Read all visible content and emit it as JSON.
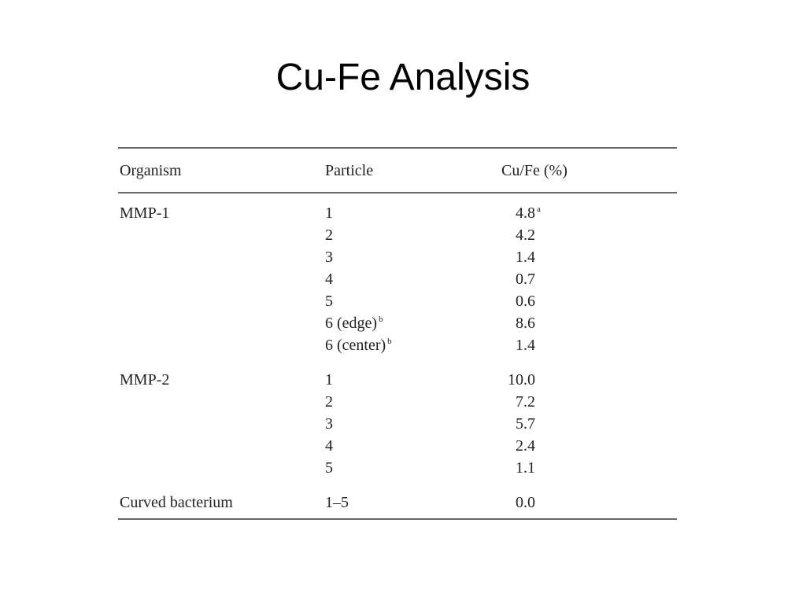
{
  "header": {
    "title": "Cu-Fe Analysis"
  },
  "table": {
    "columns": [
      "Organism",
      "Particle",
      "Cu/Fe (%)"
    ],
    "groups": [
      {
        "organism": "MMP-1",
        "entries": [
          {
            "particle": "1",
            "value": "4.8",
            "note": "a"
          },
          {
            "particle": "2",
            "value": "4.2"
          },
          {
            "particle": "3",
            "value": "1.4"
          },
          {
            "particle": "4",
            "value": "0.7"
          },
          {
            "particle": "5",
            "value": "0.6"
          },
          {
            "particle": "6 (edge)",
            "particle_note": "b",
            "value": "8.6"
          },
          {
            "particle": "6 (center)",
            "particle_note": "b",
            "value": "1.4"
          }
        ]
      },
      {
        "organism": "MMP-2",
        "entries": [
          {
            "particle": "1",
            "value": "10.0"
          },
          {
            "particle": "2",
            "value": "7.2"
          },
          {
            "particle": "3",
            "value": "5.7"
          },
          {
            "particle": "4",
            "value": "2.4"
          },
          {
            "particle": "5",
            "value": "1.1"
          }
        ]
      },
      {
        "organism": "Curved bacterium",
        "entries": [
          {
            "particle": "1–5",
            "value": "0.0"
          }
        ]
      }
    ]
  }
}
